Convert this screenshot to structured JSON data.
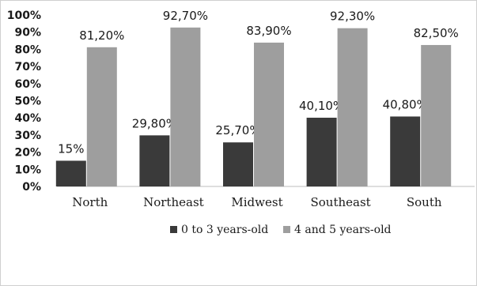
{
  "chart_data": {
    "type": "bar",
    "categories": [
      "North",
      "Northeast",
      "Midwest",
      "Southeast",
      "South"
    ],
    "series": [
      {
        "name": "0 to 3 years-old",
        "color": "#3a3a3a",
        "values": [
          15,
          29.8,
          25.7,
          40.1,
          40.8
        ],
        "labels": [
          "15%",
          "29,80%",
          "25,70%",
          "40,10%",
          "40,80%"
        ]
      },
      {
        "name": "4 and 5 years-old",
        "color": "#9e9e9e",
        "values": [
          81.2,
          92.7,
          83.9,
          92.3,
          82.5
        ],
        "labels": [
          "81,20%",
          "92,70%",
          "83,90%",
          "92,30%",
          "82,50%"
        ]
      }
    ],
    "y_ticks": [
      "0%",
      "10%",
      "20%",
      "30%",
      "40%",
      "50%",
      "60%",
      "70%",
      "80%",
      "90%",
      "100%"
    ],
    "ylim": [
      0,
      100
    ],
    "grid": false,
    "legend_position": "bottom"
  }
}
